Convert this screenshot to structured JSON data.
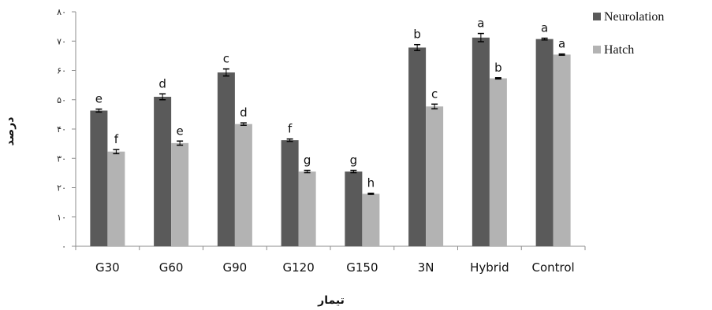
{
  "chart_data": {
    "type": "bar",
    "title": "",
    "xlabel": "تیمار",
    "ylabel": "درصد",
    "categories": [
      "G30",
      "G60",
      "G90",
      "G120",
      "G150",
      "3N",
      "Hybrid",
      "Control"
    ],
    "ylim": [
      0,
      80
    ],
    "yticks": [
      0,
      10,
      20,
      30,
      40,
      50,
      60,
      70,
      80
    ],
    "ytick_labels": [
      "۰",
      "۱۰",
      "۲۰",
      "۳۰",
      "۴۰",
      "۵۰",
      "۶۰",
      "۷۰",
      "۸۰"
    ],
    "grid": false,
    "legend_position": "right",
    "series": [
      {
        "name": "Neurolation",
        "color": "#5a5a5a",
        "values": [
          46.3,
          51.0,
          59.3,
          36.2,
          25.5,
          67.8,
          71.2,
          70.7
        ],
        "errors": [
          0.5,
          1.0,
          1.2,
          0.4,
          0.4,
          1.0,
          1.4,
          0.3
        ],
        "letters": [
          "e",
          "d",
          "c",
          "f",
          "g",
          "b",
          "a",
          "a"
        ]
      },
      {
        "name": "Hatch",
        "color": "#b3b3b3",
        "values": [
          32.3,
          35.2,
          41.7,
          25.5,
          17.9,
          47.7,
          57.3,
          65.4
        ],
        "errors": [
          0.7,
          0.7,
          0.4,
          0.4,
          0.2,
          0.8,
          0.2,
          0.2
        ],
        "letters": [
          "f",
          "e",
          "d",
          "g",
          "h",
          "c",
          "b",
          "a"
        ]
      }
    ]
  }
}
